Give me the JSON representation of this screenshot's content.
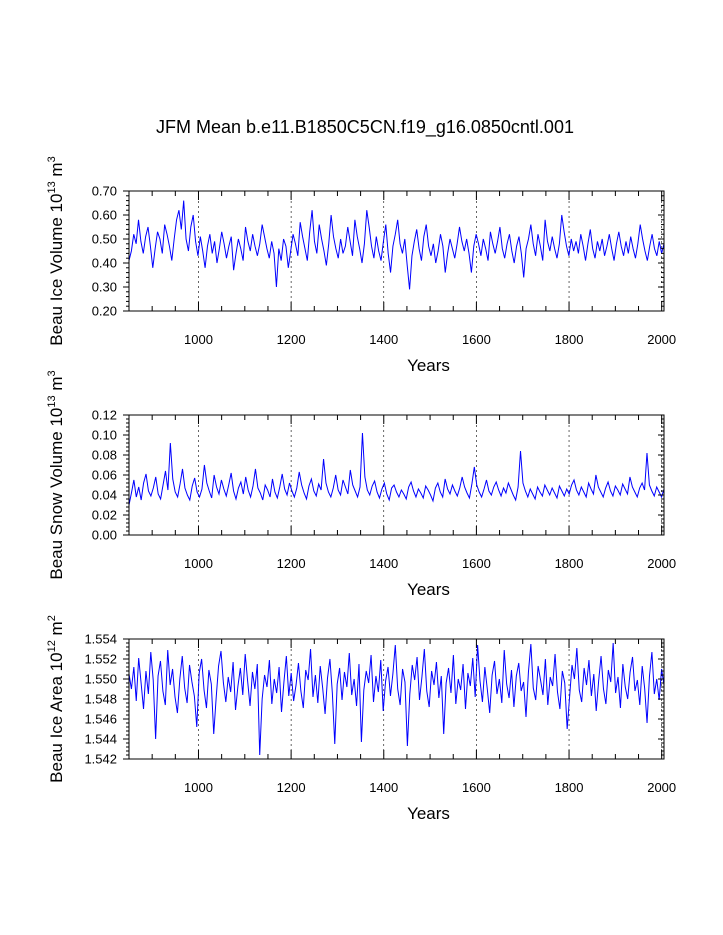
{
  "title": "JFM Mean b.e11.B1850C5CN.f19_g16.0850cntl.001",
  "colors": {
    "series": "#0000ff",
    "axes": "#000000"
  },
  "chart_data": [
    {
      "type": "line",
      "ylabel": "Beau Ice Volume 10",
      "ylabel_sup": "13",
      "ylabel_unit": " m",
      "ylabel_unit_sup": "3",
      "xlabel": "Years",
      "xlim": [
        850,
        2005
      ],
      "ylim": [
        0.2,
        0.7
      ],
      "xticks": [
        1000,
        1200,
        1400,
        1600,
        1800,
        2000
      ],
      "xtick_labels": [
        "1000",
        "1200",
        "1400",
        "1600",
        "1800",
        "2000"
      ],
      "yticks": [
        0.2,
        0.3,
        0.4,
        0.5,
        0.6,
        0.7
      ],
      "ytick_labels": [
        "0.20",
        "0.30",
        "0.40",
        "0.50",
        "0.60",
        "0.70"
      ],
      "grid_x": true,
      "series": [
        {
          "name": "Beau Ice Volume",
          "x_start": 850,
          "x_end": 2005,
          "values": [
            0.41,
            0.45,
            0.52,
            0.48,
            0.58,
            0.49,
            0.44,
            0.51,
            0.55,
            0.47,
            0.38,
            0.46,
            0.53,
            0.5,
            0.44,
            0.56,
            0.52,
            0.47,
            0.41,
            0.5,
            0.58,
            0.62,
            0.54,
            0.66,
            0.5,
            0.45,
            0.55,
            0.6,
            0.49,
            0.43,
            0.51,
            0.45,
            0.38,
            0.47,
            0.52,
            0.44,
            0.49,
            0.4,
            0.46,
            0.53,
            0.48,
            0.42,
            0.47,
            0.51,
            0.37,
            0.44,
            0.5,
            0.46,
            0.41,
            0.55,
            0.49,
            0.45,
            0.52,
            0.47,
            0.43,
            0.48,
            0.56,
            0.51,
            0.46,
            0.42,
            0.49,
            0.44,
            0.3,
            0.46,
            0.41,
            0.5,
            0.47,
            0.38,
            0.45,
            0.52,
            0.48,
            0.43,
            0.57,
            0.51,
            0.46,
            0.41,
            0.53,
            0.62,
            0.49,
            0.44,
            0.56,
            0.5,
            0.45,
            0.39,
            0.48,
            0.6,
            0.51,
            0.46,
            0.42,
            0.5,
            0.44,
            0.47,
            0.55,
            0.49,
            0.43,
            0.58,
            0.51,
            0.46,
            0.4,
            0.48,
            0.62,
            0.55,
            0.47,
            0.42,
            0.51,
            0.45,
            0.41,
            0.49,
            0.56,
            0.44,
            0.36,
            0.47,
            0.52,
            0.58,
            0.48,
            0.44,
            0.5,
            0.39,
            0.29,
            0.43,
            0.49,
            0.54,
            0.46,
            0.41,
            0.51,
            0.56,
            0.47,
            0.43,
            0.48,
            0.4,
            0.45,
            0.52,
            0.47,
            0.36,
            0.44,
            0.5,
            0.46,
            0.42,
            0.48,
            0.55,
            0.49,
            0.45,
            0.5,
            0.44,
            0.36,
            0.47,
            0.52,
            0.48,
            0.43,
            0.5,
            0.46,
            0.41,
            0.53,
            0.48,
            0.44,
            0.49,
            0.55,
            0.46,
            0.42,
            0.48,
            0.52,
            0.45,
            0.4,
            0.47,
            0.51,
            0.44,
            0.34,
            0.46,
            0.5,
            0.56,
            0.48,
            0.43,
            0.52,
            0.47,
            0.41,
            0.58,
            0.49,
            0.45,
            0.51,
            0.46,
            0.42,
            0.48,
            0.6,
            0.53,
            0.47,
            0.43,
            0.5,
            0.45,
            0.49,
            0.44,
            0.52,
            0.47,
            0.41,
            0.48,
            0.54,
            0.46,
            0.42,
            0.49,
            0.45,
            0.5,
            0.43,
            0.47,
            0.52,
            0.46,
            0.41,
            0.48,
            0.53,
            0.47,
            0.43,
            0.49,
            0.44,
            0.51,
            0.46,
            0.42,
            0.48,
            0.56,
            0.5,
            0.45,
            0.41,
            0.47,
            0.52,
            0.46,
            0.43,
            0.49,
            0.44,
            0.48
          ]
        }
      ]
    },
    {
      "type": "line",
      "ylabel": "Beau Snow Volume 10",
      "ylabel_sup": "13",
      "ylabel_unit": " m",
      "ylabel_unit_sup": "3",
      "xlabel": "Years",
      "xlim": [
        850,
        2005
      ],
      "ylim": [
        0.0,
        0.12
      ],
      "xticks": [
        1000,
        1200,
        1400,
        1600,
        1800,
        2000
      ],
      "xtick_labels": [
        "1000",
        "1200",
        "1400",
        "1600",
        "1800",
        "2000"
      ],
      "yticks": [
        0.0,
        0.02,
        0.04,
        0.06,
        0.08,
        0.1,
        0.12
      ],
      "ytick_labels": [
        "0.00",
        "0.02",
        "0.04",
        "0.06",
        "0.08",
        "0.10",
        "0.12"
      ],
      "grid_x": true,
      "series": [
        {
          "name": "Beau Snow Volume",
          "x_start": 850,
          "x_end": 2005,
          "values": [
            0.03,
            0.042,
            0.055,
            0.038,
            0.048,
            0.035,
            0.052,
            0.061,
            0.044,
            0.039,
            0.047,
            0.058,
            0.041,
            0.036,
            0.05,
            0.064,
            0.045,
            0.092,
            0.056,
            0.043,
            0.038,
            0.051,
            0.066,
            0.047,
            0.04,
            0.035,
            0.049,
            0.057,
            0.043,
            0.038,
            0.046,
            0.07,
            0.052,
            0.044,
            0.037,
            0.06,
            0.048,
            0.041,
            0.055,
            0.046,
            0.039,
            0.05,
            0.062,
            0.044,
            0.036,
            0.047,
            0.053,
            0.041,
            0.058,
            0.045,
            0.038,
            0.049,
            0.066,
            0.047,
            0.042,
            0.035,
            0.05,
            0.045,
            0.038,
            0.056,
            0.043,
            0.037,
            0.048,
            0.061,
            0.046,
            0.04,
            0.052,
            0.044,
            0.038,
            0.047,
            0.063,
            0.05,
            0.042,
            0.036,
            0.049,
            0.056,
            0.044,
            0.039,
            0.051,
            0.045,
            0.076,
            0.052,
            0.043,
            0.038,
            0.047,
            0.06,
            0.045,
            0.04,
            0.055,
            0.048,
            0.041,
            0.065,
            0.05,
            0.044,
            0.038,
            0.048,
            0.102,
            0.058,
            0.045,
            0.04,
            0.049,
            0.054,
            0.043,
            0.037,
            0.046,
            0.052,
            0.041,
            0.035,
            0.047,
            0.05,
            0.043,
            0.038,
            0.045,
            0.041,
            0.036,
            0.048,
            0.053,
            0.044,
            0.038,
            0.046,
            0.042,
            0.037,
            0.049,
            0.045,
            0.04,
            0.034,
            0.047,
            0.052,
            0.043,
            0.038,
            0.056,
            0.046,
            0.041,
            0.05,
            0.044,
            0.039,
            0.047,
            0.058,
            0.048,
            0.042,
            0.037,
            0.051,
            0.068,
            0.05,
            0.043,
            0.038,
            0.046,
            0.055,
            0.044,
            0.04,
            0.048,
            0.053,
            0.045,
            0.039,
            0.047,
            0.042,
            0.052,
            0.046,
            0.04,
            0.035,
            0.048,
            0.084,
            0.052,
            0.044,
            0.038,
            0.046,
            0.041,
            0.036,
            0.048,
            0.043,
            0.039,
            0.05,
            0.045,
            0.04,
            0.047,
            0.042,
            0.037,
            0.049,
            0.044,
            0.039,
            0.046,
            0.041,
            0.05,
            0.055,
            0.045,
            0.04,
            0.048,
            0.043,
            0.038,
            0.052,
            0.046,
            0.041,
            0.06,
            0.048,
            0.043,
            0.038,
            0.047,
            0.053,
            0.044,
            0.039,
            0.049,
            0.045,
            0.04,
            0.051,
            0.046,
            0.041,
            0.058,
            0.048,
            0.043,
            0.038,
            0.047,
            0.052,
            0.045,
            0.082,
            0.05,
            0.044,
            0.039,
            0.048,
            0.043,
            0.038,
            0.046
          ]
        }
      ]
    },
    {
      "type": "line",
      "ylabel": "Beau Ice Area 10",
      "ylabel_sup": "12",
      "ylabel_unit": " m",
      "ylabel_unit_sup": "2",
      "xlabel": "Years",
      "xlim": [
        850,
        2005
      ],
      "ylim": [
        1.542,
        1.554
      ],
      "xticks": [
        1000,
        1200,
        1400,
        1600,
        1800,
        2000
      ],
      "xtick_labels": [
        "1000",
        "1200",
        "1400",
        "1600",
        "1800",
        "2000"
      ],
      "yticks": [
        1.542,
        1.544,
        1.546,
        1.548,
        1.55,
        1.552,
        1.554
      ],
      "ytick_labels": [
        "1.542",
        "1.544",
        "1.546",
        "1.548",
        "1.550",
        "1.552",
        "1.554"
      ],
      "grid_x": true,
      "series": [
        {
          "name": "Beau Ice Area",
          "x_start": 850,
          "x_end": 2005,
          "values": [
            1.5505,
            1.549,
            1.5512,
            1.5478,
            1.5521,
            1.5496,
            1.547,
            1.5508,
            1.5485,
            1.5527,
            1.5499,
            1.544,
            1.5503,
            1.5518,
            1.5488,
            1.5474,
            1.5529,
            1.5494,
            1.551,
            1.5482,
            1.5466,
            1.55,
            1.5523,
            1.5491,
            1.5476,
            1.5514,
            1.5497,
            1.5483,
            1.5452,
            1.5506,
            1.552,
            1.5489,
            1.5471,
            1.5509,
            1.5495,
            1.5445,
            1.5481,
            1.5513,
            1.5528,
            1.5496,
            1.5477,
            1.5502,
            1.5487,
            1.5517,
            1.5469,
            1.5493,
            1.5511,
            1.5484,
            1.5525,
            1.5498,
            1.5473,
            1.5507,
            1.549,
            1.5515,
            1.5424,
            1.548,
            1.5504,
            1.5492,
            1.5519,
            1.5475,
            1.55,
            1.5486,
            1.5512,
            1.5467,
            1.5497,
            1.5523,
            1.5483,
            1.5506,
            1.5478,
            1.5494,
            1.5516,
            1.5488,
            1.5471,
            1.5509,
            1.5499,
            1.553,
            1.5482,
            1.5504,
            1.5476,
            1.5513,
            1.5491,
            1.5465,
            1.5501,
            1.552,
            1.5486,
            1.5435,
            1.5495,
            1.5511,
            1.5479,
            1.5507,
            1.5492,
            1.5526,
            1.5484,
            1.55,
            1.5473,
            1.5515,
            1.5437,
            1.5489,
            1.5508,
            1.5496,
            1.5524,
            1.5477,
            1.5503,
            1.5487,
            1.5519,
            1.5468,
            1.5498,
            1.5512,
            1.5483,
            1.5505,
            1.5534,
            1.549,
            1.5474,
            1.551,
            1.5497,
            1.5433,
            1.5485,
            1.5514,
            1.5499,
            1.5522,
            1.5479,
            1.5502,
            1.553,
            1.5488,
            1.5472,
            1.5508,
            1.5494,
            1.5517,
            1.5481,
            1.5503,
            1.5445,
            1.5496,
            1.5511,
            1.5486,
            1.5524,
            1.5475,
            1.55,
            1.5489,
            1.5515,
            1.547,
            1.5506,
            1.5493,
            1.5521,
            1.5482,
            1.5534,
            1.5498,
            1.5477,
            1.5512,
            1.549,
            1.5466,
            1.5504,
            1.5518,
            1.5485,
            1.55,
            1.5476,
            1.5529,
            1.5495,
            1.5481,
            1.5509,
            1.5472,
            1.5503,
            1.5516,
            1.5488,
            1.5497,
            1.5462,
            1.5507,
            1.5535,
            1.5491,
            1.5479,
            1.5513,
            1.5499,
            1.5484,
            1.552,
            1.5474,
            1.5502,
            1.5493,
            1.5525,
            1.5487,
            1.547,
            1.5508,
            1.5496,
            1.545,
            1.5482,
            1.5514,
            1.55,
            1.5531,
            1.5489,
            1.5477,
            1.5511,
            1.5494,
            1.5519,
            1.5483,
            1.5505,
            1.5468,
            1.5498,
            1.5523,
            1.549,
            1.5475,
            1.5509,
            1.5497,
            1.5536,
            1.5486,
            1.5502,
            1.5471,
            1.5515,
            1.5492,
            1.548,
            1.5507,
            1.5522,
            1.5488,
            1.5499,
            1.5474,
            1.5513,
            1.5491,
            1.5456,
            1.5503,
            1.5527,
            1.5485,
            1.55,
            1.5479,
            1.551,
            1.5494
          ]
        }
      ]
    }
  ]
}
